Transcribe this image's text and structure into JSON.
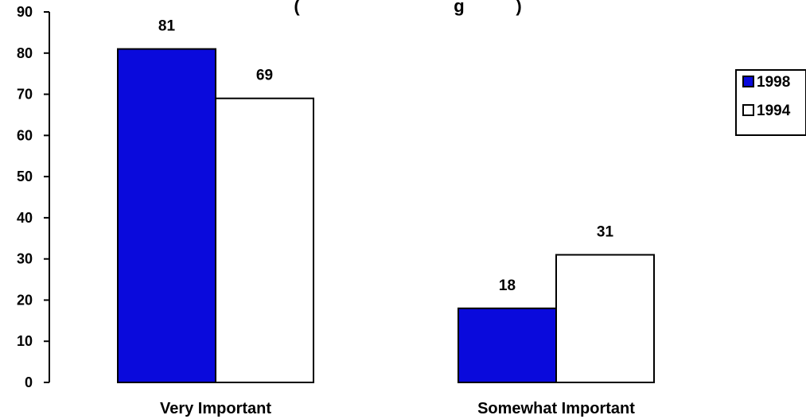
{
  "chart_data": {
    "type": "bar",
    "title": "(",
    "title_tail": "g",
    "title_close": ")",
    "categories": [
      "Very Important",
      "Somewhat Important"
    ],
    "series": [
      {
        "name": "1998",
        "values": [
          81,
          18
        ],
        "color": "#0a0adc"
      },
      {
        "name": "1994",
        "values": [
          69,
          31
        ],
        "color": "#ffffff"
      }
    ],
    "ylim": [
      0,
      90
    ],
    "yticks": [
      0,
      10,
      20,
      30,
      40,
      50,
      60,
      70,
      80,
      90
    ],
    "grid": false,
    "legend_position": "right"
  }
}
